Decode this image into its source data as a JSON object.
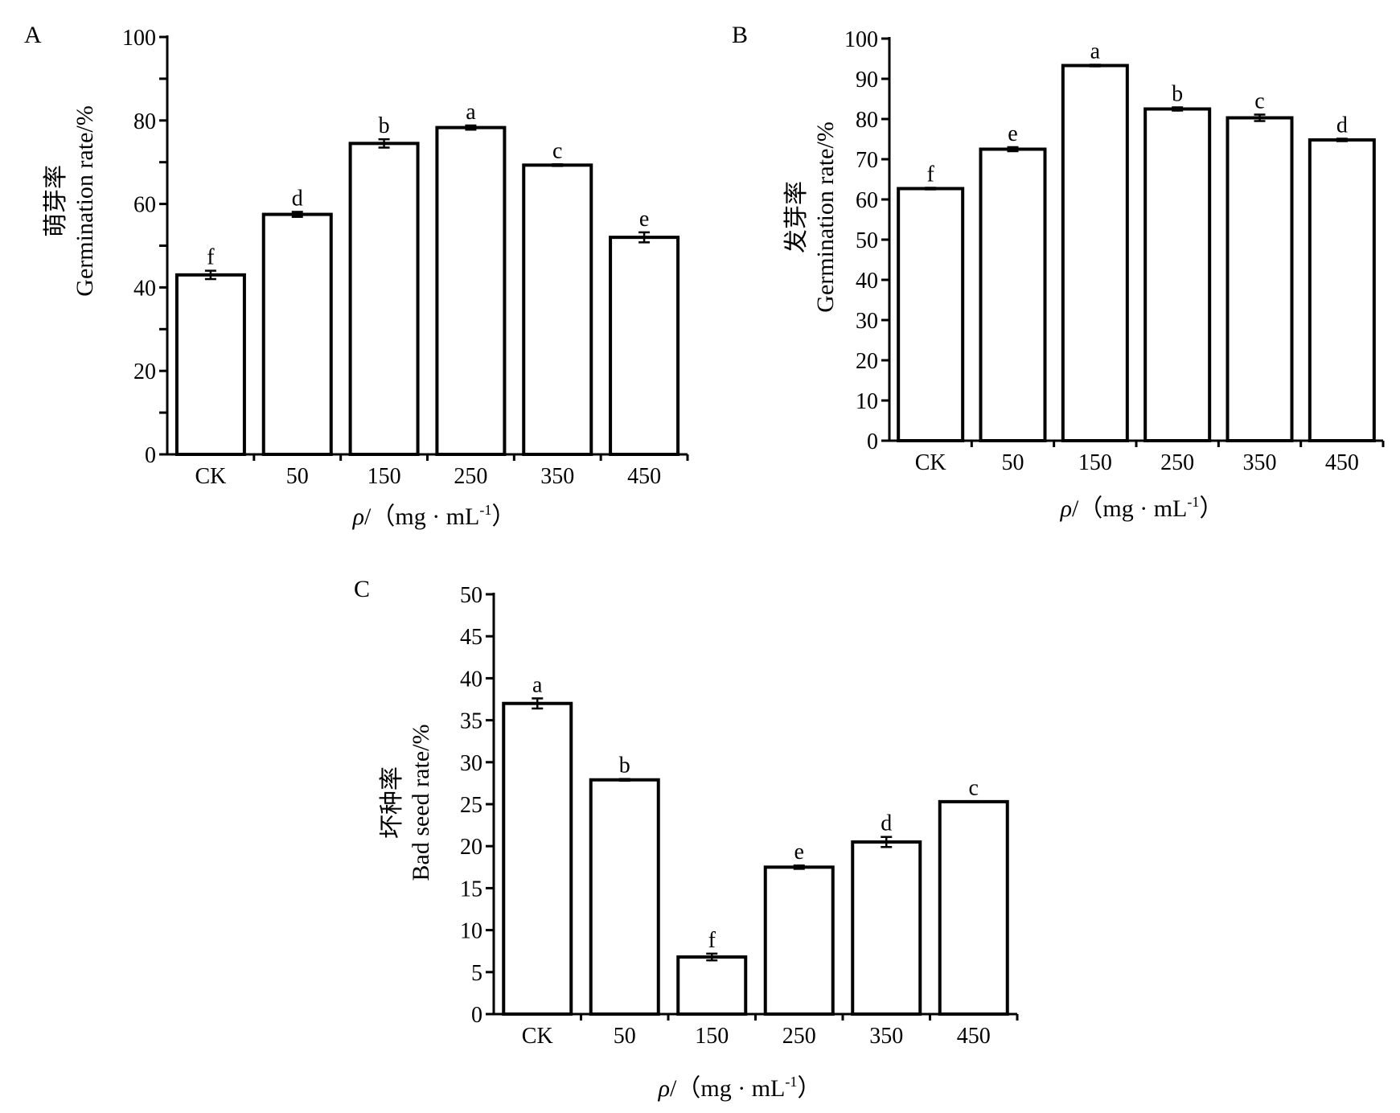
{
  "chart_data": [
    {
      "panel": "A",
      "type": "bar",
      "categories": [
        "CK",
        "50",
        "150",
        "250",
        "350",
        "450"
      ],
      "values": [
        43.0,
        57.5,
        74.5,
        78.3,
        69.3,
        52.0
      ],
      "errors": [
        1.0,
        0.6,
        1.0,
        0.5,
        0.2,
        1.2
      ],
      "significance": [
        "f",
        "d",
        "b",
        "a",
        "c",
        "e"
      ],
      "ylabel_cn": "萌芽率",
      "ylabel_en": "Germination rate/%",
      "xlabel_symbol": "ρ",
      "xlabel_rest": "/（mg · mL",
      "xlabel_sup": "-1",
      "xlabel_close": "）",
      "ylim": [
        0,
        100
      ],
      "yticks": [
        "0",
        "20",
        "40",
        "60",
        "80",
        "100"
      ],
      "yticks_values": [
        0,
        20,
        40,
        60,
        80,
        100
      ],
      "minor_step": 10,
      "grid": false
    },
    {
      "panel": "B",
      "type": "bar",
      "categories": [
        "CK",
        "50",
        "150",
        "250",
        "350",
        "450"
      ],
      "values": [
        62.7,
        72.5,
        93.3,
        82.5,
        80.3,
        74.8
      ],
      "errors": [
        0.2,
        0.5,
        0.2,
        0.4,
        0.8,
        0.3
      ],
      "significance": [
        "f",
        "e",
        "a",
        "b",
        "c",
        "d"
      ],
      "ylabel_cn": "发芽率",
      "ylabel_en": "Germination rate/%",
      "xlabel_symbol": "ρ",
      "xlabel_rest": "/（mg · mL",
      "xlabel_sup": "-1",
      "xlabel_close": "）",
      "ylim": [
        0,
        100
      ],
      "yticks": [
        "0",
        "10",
        "20",
        "30",
        "40",
        "50",
        "60",
        "70",
        "80",
        "90",
        "100"
      ],
      "yticks_values": [
        0,
        10,
        20,
        30,
        40,
        50,
        60,
        70,
        80,
        90,
        100
      ],
      "minor_step": null,
      "grid": false
    },
    {
      "panel": "C",
      "type": "bar",
      "categories": [
        "CK",
        "50",
        "150",
        "250",
        "350",
        "450"
      ],
      "values": [
        37.0,
        27.9,
        6.8,
        17.5,
        20.5,
        25.3
      ],
      "errors": [
        0.6,
        0.1,
        0.4,
        0.2,
        0.6,
        0.05
      ],
      "significance": [
        "a",
        "b",
        "f",
        "e",
        "d",
        "c"
      ],
      "ylabel_cn": "坏种率",
      "ylabel_en": "Bad seed rate/%",
      "xlabel_symbol": "ρ",
      "xlabel_rest": "/（mg · mL",
      "xlabel_sup": "-1",
      "xlabel_close": "）",
      "ylim": [
        0,
        50
      ],
      "yticks": [
        "0",
        "5",
        "10",
        "15",
        "20",
        "25",
        "30",
        "35",
        "40",
        "45",
        "50"
      ],
      "yticks_values": [
        0,
        5,
        10,
        15,
        20,
        25,
        30,
        35,
        40,
        45,
        50
      ],
      "minor_step": null,
      "grid": false
    }
  ]
}
